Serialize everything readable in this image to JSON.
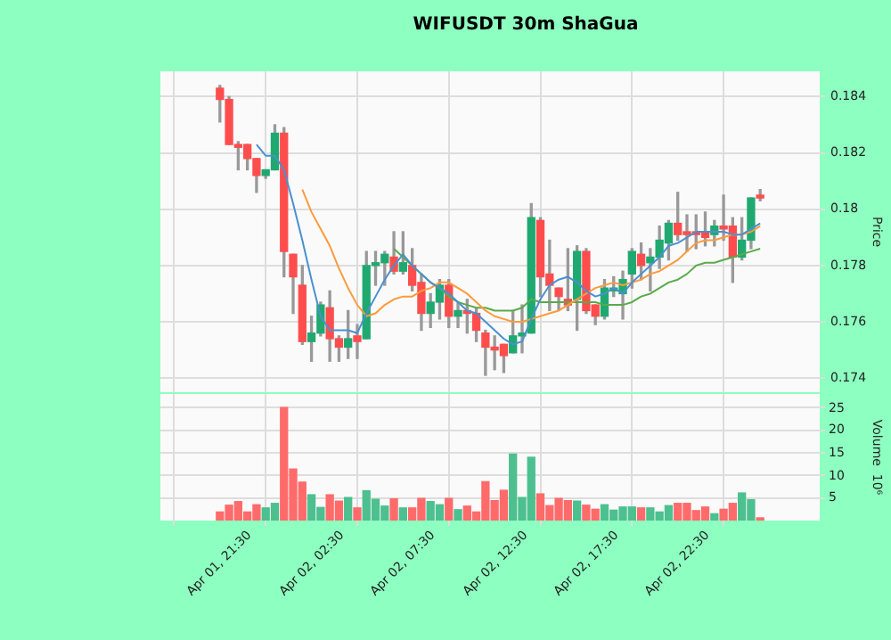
{
  "chart_data": [
    {
      "type": "candlestick",
      "title": "WIFUSDT 30m ShaGua",
      "ylabel": "Price",
      "categories": [
        null,
        null,
        null,
        null,
        null,
        null,
        null,
        null,
        null,
        null,
        null,
        null,
        null,
        null,
        null,
        null,
        null,
        null,
        null,
        null,
        null,
        null,
        null,
        null,
        null,
        null,
        null,
        null,
        null,
        null,
        null,
        null,
        null,
        null,
        null,
        null,
        null,
        null,
        null,
        null,
        null,
        null,
        null,
        null,
        null,
        null,
        null,
        null,
        null,
        null,
        null,
        null,
        null,
        null,
        null,
        null,
        null,
        null,
        null,
        null
      ],
      "ohlc": [
        [
          0.1843,
          0.1844,
          0.1831,
          0.1839
        ],
        [
          0.1839,
          0.184,
          0.1823,
          0.1823
        ],
        [
          0.1823,
          0.1824,
          0.1814,
          0.1822
        ],
        [
          0.1823,
          0.1823,
          0.1814,
          0.1818
        ],
        [
          0.1818,
          0.1818,
          0.1806,
          0.1812
        ],
        [
          0.1812,
          0.1814,
          0.1811,
          0.1814
        ],
        [
          0.1814,
          0.183,
          0.1814,
          0.1827
        ],
        [
          0.1827,
          0.1829,
          0.1776,
          0.1785
        ],
        [
          0.1784,
          0.1784,
          0.1763,
          0.1776
        ],
        [
          0.1773,
          0.178,
          0.1752,
          0.1753
        ],
        [
          0.1753,
          0.1762,
          0.1746,
          0.1756
        ],
        [
          0.1756,
          0.1767,
          0.1755,
          0.1766
        ],
        [
          0.1765,
          0.1771,
          0.1746,
          0.1754
        ],
        [
          0.1754,
          0.1755,
          0.1746,
          0.1751
        ],
        [
          0.1751,
          0.1764,
          0.1747,
          0.1754
        ],
        [
          0.1755,
          0.1759,
          0.1747,
          0.1753
        ],
        [
          0.1754,
          0.1785,
          0.1754,
          0.178
        ],
        [
          0.178,
          0.1785,
          0.1773,
          0.1781
        ],
        [
          0.1781,
          0.1785,
          0.1773,
          0.1784
        ],
        [
          0.1783,
          0.1792,
          0.1777,
          0.1778
        ],
        [
          0.1778,
          0.1792,
          0.1777,
          0.1781
        ],
        [
          0.178,
          0.1786,
          0.1771,
          0.1773
        ],
        [
          0.1774,
          0.1777,
          0.1757,
          0.1763
        ],
        [
          0.1763,
          0.177,
          0.1758,
          0.1767
        ],
        [
          0.1767,
          0.1775,
          0.1761,
          0.1773
        ],
        [
          0.1773,
          0.1775,
          0.1758,
          0.1762
        ],
        [
          0.1762,
          0.1767,
          0.1758,
          0.1764
        ],
        [
          0.1764,
          0.1768,
          0.1756,
          0.1763
        ],
        [
          0.1763,
          0.1765,
          0.1753,
          0.1757
        ],
        [
          0.1756,
          0.1757,
          0.1741,
          0.1751
        ],
        [
          0.1751,
          0.1755,
          0.1743,
          0.175
        ],
        [
          0.1752,
          0.1752,
          0.1742,
          0.1748
        ],
        [
          0.1749,
          0.1764,
          0.1749,
          0.1755
        ],
        [
          0.1755,
          0.1766,
          0.1749,
          0.1756
        ],
        [
          0.1756,
          0.1802,
          0.1756,
          0.1797
        ],
        [
          0.1796,
          0.1797,
          0.1769,
          0.1776
        ],
        [
          0.1777,
          0.1789,
          0.1764,
          0.1773
        ],
        [
          0.1772,
          0.1772,
          0.1764,
          0.1769
        ],
        [
          0.1768,
          0.1786,
          0.1764,
          0.1766
        ],
        [
          0.1768,
          0.1787,
          0.1757,
          0.1785
        ],
        [
          0.1785,
          0.1786,
          0.1763,
          0.1764
        ],
        [
          0.1766,
          0.1766,
          0.1759,
          0.1762
        ],
        [
          0.1762,
          0.1775,
          0.1761,
          0.1772
        ],
        [
          0.1771,
          0.1776,
          0.1769,
          0.1772
        ],
        [
          0.177,
          0.1778,
          0.1761,
          0.1775
        ],
        [
          0.1777,
          0.1786,
          0.1772,
          0.1785
        ],
        [
          0.1784,
          0.1788,
          0.1775,
          0.178
        ],
        [
          0.1781,
          0.1786,
          0.1771,
          0.1783
        ],
        [
          0.1783,
          0.1794,
          0.1779,
          0.1789
        ],
        [
          0.1788,
          0.1796,
          0.1782,
          0.1795
        ],
        [
          0.1795,
          0.1806,
          0.1789,
          0.1791
        ],
        [
          0.1792,
          0.1798,
          0.1785,
          0.1791
        ],
        [
          0.1792,
          0.1798,
          0.1786,
          0.1791
        ],
        [
          0.1792,
          0.1799,
          0.1787,
          0.179
        ],
        [
          0.1791,
          0.1796,
          0.1787,
          0.1794
        ],
        [
          0.1794,
          0.1805,
          0.1789,
          0.1793
        ],
        [
          0.1794,
          0.1797,
          0.1774,
          0.1783
        ],
        [
          0.1783,
          0.1797,
          0.1782,
          0.1789
        ],
        [
          0.1789,
          0.1804,
          0.1786,
          0.1804
        ],
        [
          0.1805,
          0.1807,
          0.1803,
          0.1804
        ]
      ],
      "colors": [
        "#ff4d4d",
        "#ff4d4d",
        "#ff4d4d",
        "#ff4d4d",
        "#ff4d4d",
        "#1fa971",
        "#1fa971",
        "#ff4d4d",
        "#ff4d4d",
        "#ff4d4d",
        "#1fa971",
        "#1fa971",
        "#ff4d4d",
        "#ff4d4d",
        "#1fa971",
        "#ff4d4d",
        "#1fa971",
        "#1fa971",
        "#1fa971",
        "#ff4d4d",
        "#1fa971",
        "#ff4d4d",
        "#ff4d4d",
        "#1fa971",
        "#1fa971",
        "#ff4d4d",
        "#1fa971",
        "#ff4d4d",
        "#ff4d4d",
        "#ff4d4d",
        "#ff4d4d",
        "#ff4d4d",
        "#1fa971",
        "#1fa971",
        "#1fa971",
        "#ff4d4d",
        "#ff4d4d",
        "#ff4d4d",
        "#ff4d4d",
        "#1fa971",
        "#ff4d4d",
        "#ff4d4d",
        "#1fa971",
        "#1fa971",
        "#1fa971",
        "#1fa971",
        "#ff4d4d",
        "#1fa971",
        "#1fa971",
        "#1fa971",
        "#ff4d4d",
        "#ff4d4d",
        "#ff4d4d",
        "#ff4d4d",
        "#1fa971",
        "#ff4d4d",
        "#ff4d4d",
        "#1fa971",
        "#1fa971",
        "#ff4d4d"
      ],
      "series": [
        {
          "type": "line",
          "color": "#4a90d0",
          "values": [
            null,
            null,
            null,
            null,
            0.1823,
            0.1819,
            0.1819,
            0.1814,
            0.1802,
            0.1789,
            0.1775,
            0.1762,
            0.1757,
            0.1757,
            0.1757,
            0.1756,
            0.1763,
            0.1769,
            0.1775,
            0.178,
            0.1784,
            0.178,
            0.1777,
            0.1774,
            0.1772,
            0.177,
            0.1767,
            0.1764,
            0.1763,
            0.176,
            0.1757,
            0.1754,
            0.1752,
            0.1753,
            0.1761,
            0.1768,
            0.1773,
            0.1775,
            0.1776,
            0.1774,
            0.1771,
            0.1769,
            0.177,
            0.1772,
            0.177,
            0.1774,
            0.1777,
            0.178,
            0.1783,
            0.1787,
            0.1788,
            0.179,
            0.1792,
            0.1792,
            0.1792,
            0.1792,
            0.1791,
            0.1791,
            0.1793,
            0.1795
          ]
        },
        {
          "type": "line",
          "color": "#ff9a3c",
          "values": [
            null,
            null,
            null,
            null,
            null,
            null,
            null,
            null,
            null,
            0.1807,
            0.1799,
            0.1793,
            0.1787,
            0.1779,
            0.1772,
            0.1766,
            0.1762,
            0.1763,
            0.1766,
            0.1768,
            0.1769,
            0.1769,
            0.1771,
            0.1772,
            0.1774,
            0.1774,
            0.1772,
            0.177,
            0.1767,
            0.1764,
            0.1762,
            0.1761,
            0.176,
            0.176,
            0.1761,
            0.1762,
            0.1763,
            0.1764,
            0.1766,
            0.1768,
            0.177,
            0.1772,
            0.1773,
            0.1774,
            0.1773,
            0.1774,
            0.1775,
            0.1777,
            0.1778,
            0.178,
            0.1782,
            0.1785,
            0.1788,
            0.1789,
            0.1789,
            0.179,
            0.1791,
            0.1791,
            0.1792,
            0.1794
          ]
        },
        {
          "type": "line",
          "color": "#5aab4a",
          "values": [
            null,
            null,
            null,
            null,
            null,
            null,
            null,
            null,
            null,
            null,
            null,
            null,
            null,
            null,
            null,
            null,
            null,
            null,
            null,
            0.1786,
            0.1783,
            0.178,
            0.1777,
            0.1774,
            0.1772,
            0.1769,
            0.1767,
            0.1766,
            0.1765,
            0.1765,
            0.1764,
            0.1764,
            0.1764,
            0.1765,
            0.1768,
            0.1767,
            0.1767,
            0.1767,
            0.1767,
            0.1767,
            0.1767,
            0.1767,
            0.1766,
            0.1766,
            0.1766,
            0.1767,
            0.1769,
            0.177,
            0.1772,
            0.1774,
            0.1775,
            0.1777,
            0.178,
            0.1781,
            0.1781,
            0.1782,
            0.1783,
            0.1784,
            0.1785,
            0.1786
          ]
        }
      ],
      "ylim": [
        0.1735,
        0.1849
      ],
      "yticks": [
        0.174,
        0.176,
        0.178,
        0.18,
        0.182,
        0.184
      ],
      "grid": true,
      "tick_labels": "y"
    },
    {
      "type": "bar",
      "ylabel": "Volume  10⁶",
      "categories": [
        "Apr 01, 21:30",
        null,
        null,
        null,
        null,
        null,
        null,
        null,
        null,
        null,
        "Apr 02, 02:30",
        null,
        null,
        null,
        null,
        null,
        null,
        null,
        null,
        null,
        "Apr 02, 07:30",
        null,
        null,
        null,
        null,
        null,
        null,
        null,
        null,
        null,
        "Apr 02, 12:30",
        null,
        null,
        null,
        null,
        null,
        null,
        null,
        null,
        null,
        "Apr 02, 17:30",
        null,
        null,
        null,
        null,
        null,
        null,
        null,
        null,
        null,
        "Apr 02, 22:30",
        null,
        null,
        null,
        null,
        null,
        null,
        null,
        null,
        null
      ],
      "values": [
        1.9,
        3.4,
        4.2,
        1.9,
        3.5,
        2.8,
        3.8,
        25,
        11.4,
        8.5,
        5.7,
        2.9,
        5.7,
        4.3,
        5.1,
        2.8,
        6.6,
        4.7,
        3.2,
        4.8,
        2.8,
        2.8,
        4.9,
        4.2,
        3.5,
        4.9,
        2.4,
        3.2,
        1.9,
        8.6,
        4.4,
        6.7,
        14.7,
        5.1,
        14,
        5.9,
        3.3,
        4.9,
        4.4,
        4.3,
        3.4,
        2.5,
        3.5,
        2.3,
        3,
        3,
        2.8,
        2.8,
        1.9,
        3.3,
        3.8,
        3.8,
        2.2,
        3,
        1.5,
        2.5,
        3.8,
        6.1,
        4.6,
        0.6
      ],
      "colors": [
        "#ff6b6b",
        "#ff6b6b",
        "#ff6b6b",
        "#ff6b6b",
        "#ff6b6b",
        "#4cc08f",
        "#4cc08f",
        "#ff6b6b",
        "#ff6b6b",
        "#ff6b6b",
        "#4cc08f",
        "#4cc08f",
        "#ff6b6b",
        "#ff6b6b",
        "#4cc08f",
        "#ff6b6b",
        "#4cc08f",
        "#4cc08f",
        "#4cc08f",
        "#ff6b6b",
        "#4cc08f",
        "#ff6b6b",
        "#ff6b6b",
        "#4cc08f",
        "#4cc08f",
        "#ff6b6b",
        "#4cc08f",
        "#ff6b6b",
        "#ff6b6b",
        "#ff6b6b",
        "#ff6b6b",
        "#ff6b6b",
        "#4cc08f",
        "#4cc08f",
        "#4cc08f",
        "#ff6b6b",
        "#ff6b6b",
        "#ff6b6b",
        "#ff6b6b",
        "#4cc08f",
        "#ff6b6b",
        "#ff6b6b",
        "#4cc08f",
        "#4cc08f",
        "#4cc08f",
        "#4cc08f",
        "#ff6b6b",
        "#4cc08f",
        "#4cc08f",
        "#4cc08f",
        "#ff6b6b",
        "#ff6b6b",
        "#ff6b6b",
        "#ff6b6b",
        "#4cc08f",
        "#ff6b6b",
        "#ff6b6b",
        "#4cc08f",
        "#4cc08f",
        "#ff6b6b"
      ],
      "ylim": [
        0,
        28
      ],
      "yticks": [
        5,
        10,
        15,
        20,
        25
      ],
      "grid": true
    }
  ]
}
